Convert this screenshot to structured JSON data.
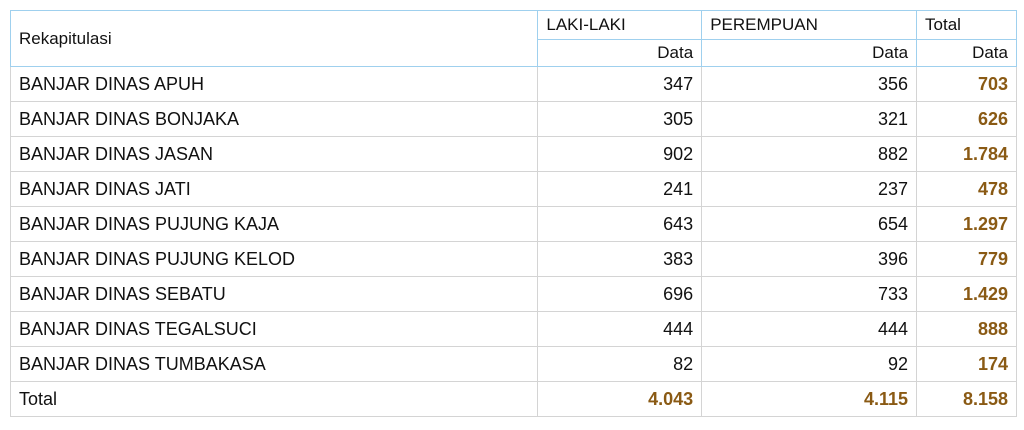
{
  "table": {
    "header": {
      "label": "Rekapitulasi",
      "groups": [
        "LAKI-LAKI",
        "PEREMPUAN",
        "Total"
      ],
      "sub": [
        "Data",
        "Data",
        "Data"
      ]
    },
    "rows": [
      [
        "BANJAR DINAS APUH",
        "347",
        "356",
        "703"
      ],
      [
        "BANJAR DINAS BONJAKA",
        "305",
        "321",
        "626"
      ],
      [
        "BANJAR DINAS JASAN",
        "902",
        "882",
        "1.784"
      ],
      [
        "BANJAR DINAS JATI",
        "241",
        "237",
        "478"
      ],
      [
        "BANJAR DINAS PUJUNG KAJA",
        "643",
        "654",
        "1.297"
      ],
      [
        "BANJAR DINAS PUJUNG KELOD",
        "383",
        "396",
        "779"
      ],
      [
        "BANJAR DINAS SEBATU",
        "696",
        "733",
        "1.429"
      ],
      [
        "BANJAR DINAS TEGALSUCI",
        "444",
        "444",
        "888"
      ],
      [
        "BANJAR DINAS TUMBAKASA",
        "82",
        "92",
        "174"
      ]
    ],
    "total": [
      "Total",
      "4.043",
      "4.115",
      "8.158"
    ]
  }
}
